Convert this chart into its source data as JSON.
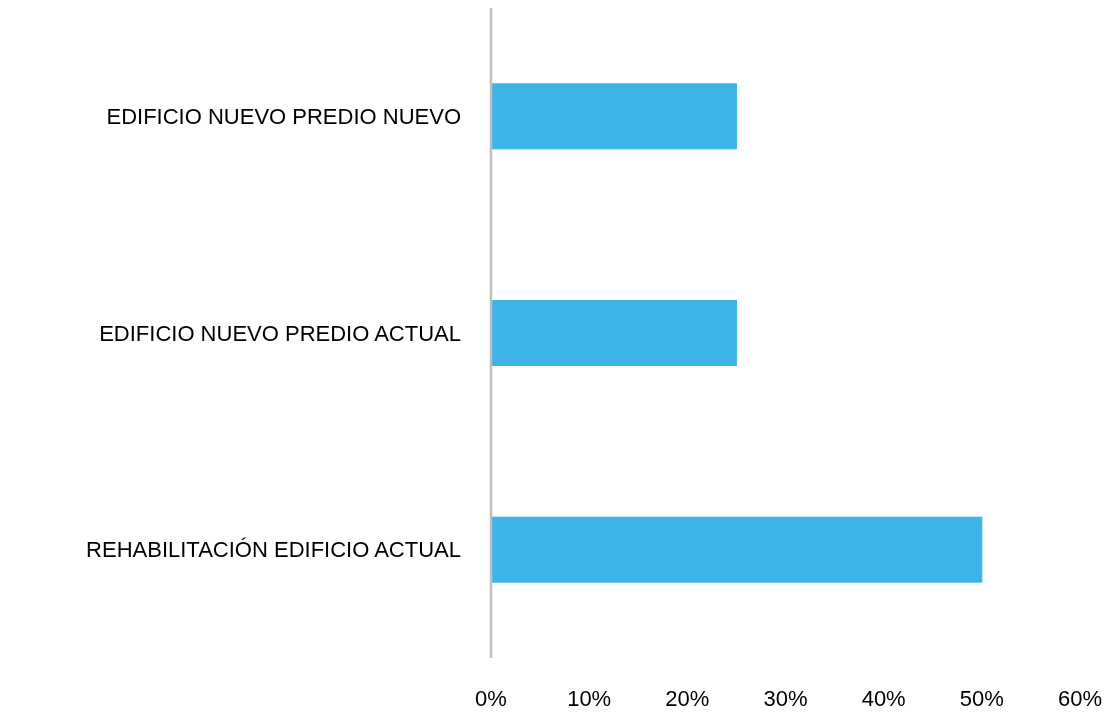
{
  "chart_data": {
    "type": "bar",
    "orientation": "horizontal",
    "categories": [
      "EDIFICIO NUEVO PREDIO NUEVO",
      "EDIFICIO NUEVO PREDIO ACTUAL",
      "REHABILITACIÓN EDIFICIO ACTUAL"
    ],
    "values": [
      25,
      25,
      50
    ],
    "color": "#3cb4e6",
    "xlim": [
      0,
      60
    ],
    "xticks": [
      {
        "value": 0,
        "label": "0%"
      },
      {
        "value": 10,
        "label": "10%"
      },
      {
        "value": 20,
        "label": "20%"
      },
      {
        "value": 30,
        "label": "30%"
      },
      {
        "value": 40,
        "label": "40%"
      },
      {
        "value": 50,
        "label": "50%"
      },
      {
        "value": 60,
        "label": "60%"
      }
    ]
  }
}
